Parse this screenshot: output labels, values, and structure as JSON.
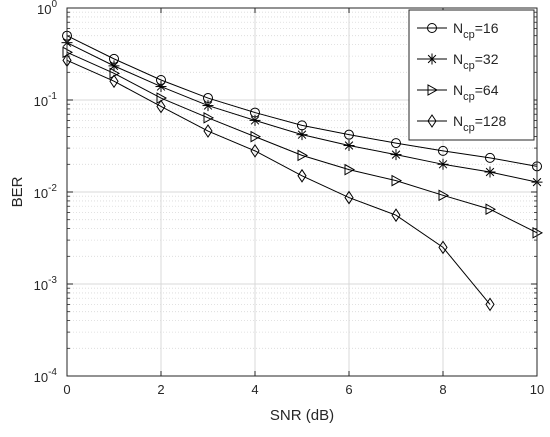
{
  "chart_data": {
    "type": "line",
    "title": "",
    "xlabel": "SNR (dB)",
    "ylabel": "BER",
    "x_scale": "linear",
    "y_scale": "log",
    "xlim": [
      0,
      10
    ],
    "ylim": [
      0.0001,
      1
    ],
    "x_ticks": [
      "0",
      "2",
      "4",
      "6",
      "8",
      "10"
    ],
    "y_ticks": [
      {
        "base": "10",
        "exp": "-4"
      },
      {
        "base": "10",
        "exp": "-3"
      },
      {
        "base": "10",
        "exp": "-2"
      },
      {
        "base": "10",
        "exp": "-1"
      },
      {
        "base": "10",
        "exp": "0"
      }
    ],
    "grid": true,
    "legend_position": "top-right",
    "x": [
      0,
      1,
      2,
      3,
      4,
      5,
      6,
      7,
      8,
      9,
      10
    ],
    "series": [
      {
        "name": "N",
        "subscript": "cp",
        "suffix": "=16",
        "marker": "circle",
        "values": [
          0.5,
          0.28,
          0.165,
          0.105,
          0.073,
          0.053,
          0.042,
          0.034,
          0.028,
          0.0235,
          0.019
        ]
      },
      {
        "name": "N",
        "subscript": "cp",
        "suffix": "=32",
        "marker": "star",
        "values": [
          0.42,
          0.235,
          0.14,
          0.087,
          0.06,
          0.042,
          0.032,
          0.0255,
          0.02,
          0.0165,
          0.0128
        ]
      },
      {
        "name": "N",
        "subscript": "cp",
        "suffix": "=64",
        "marker": "triangle-right",
        "values": [
          0.33,
          0.195,
          0.105,
          0.064,
          0.04,
          0.025,
          0.0175,
          0.0133,
          0.0092,
          0.0065,
          0.0036
        ]
      },
      {
        "name": "N",
        "subscript": "cp",
        "suffix": "=128",
        "marker": "diamond",
        "values": [
          0.27,
          0.16,
          0.085,
          0.046,
          0.028,
          0.015,
          0.0087,
          0.0056,
          0.0025,
          0.0006,
          null
        ]
      }
    ],
    "colors": {
      "line": "#000000",
      "grid": "#d9d9d9",
      "axis": "#262626",
      "background": "#ffffff"
    }
  }
}
